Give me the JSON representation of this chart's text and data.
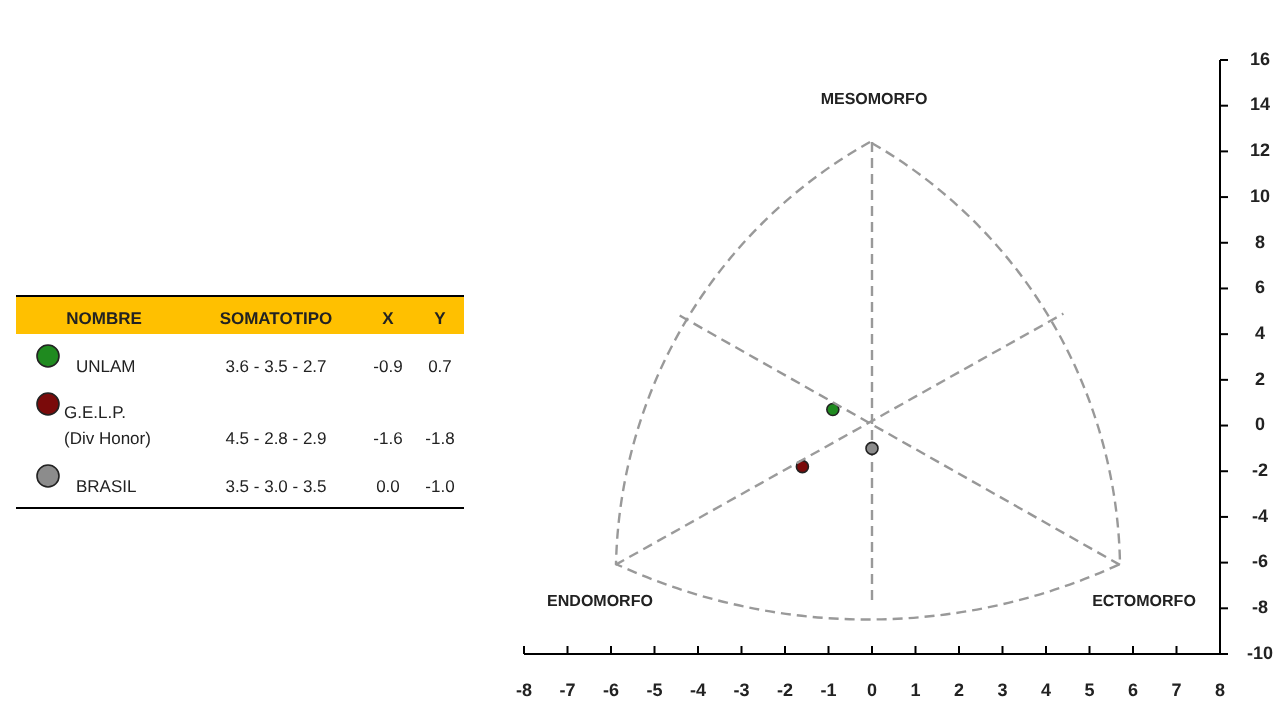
{
  "chart_data": {
    "type": "scatter",
    "xlim": [
      -8,
      8
    ],
    "xticks": [
      -8,
      -7,
      -6,
      -5,
      -4,
      -3,
      -2,
      -1,
      0,
      1,
      2,
      3,
      4,
      5,
      6,
      7,
      8
    ],
    "ylim": [
      -10,
      16
    ],
    "yticks": [
      -10,
      -8,
      -6,
      -4,
      -2,
      0,
      2,
      4,
      6,
      8,
      10,
      12,
      14,
      16
    ],
    "marker": "circle",
    "legend": "left",
    "series": [
      {
        "name": "UNLAM",
        "color": "#1f8a1f",
        "x": [
          -0.9
        ],
        "values": [
          0.7
        ]
      },
      {
        "name": "G.E.L.P. (Div Honor)",
        "color": "#7a0a0a",
        "x": [
          -1.6
        ],
        "values": [
          -1.8
        ]
      },
      {
        "name": "BRASIL",
        "color": "#8c8c8c",
        "x": [
          0.0
        ],
        "values": [
          -1.0
        ]
      },
      {
        "type": "line",
        "color": "#9b9b9b",
        "line_style": "dashed",
        "marker": "none",
        "x": [
          -5.9,
          4.4
        ],
        "values": [
          -6.1,
          4.9
        ]
      },
      {
        "type": "line",
        "color": "#979797",
        "line_style": "dashed",
        "marker": "none",
        "x": [
          5.7,
          -4.5
        ],
        "values": [
          -6.1,
          4.9
        ]
      }
    ],
    "ref_lines": [
      {
        "axis": "x",
        "value": 0,
        "color": "#999999",
        "line_style": "dashed"
      }
    ],
    "annotations": [
      "NOMBRE",
      "SOMATOTIPO",
      "X",
      "Y",
      "3.6 - 3.5 - 2.7",
      "-0.9",
      "0.7",
      "4.5 - 2.8 - 2.9",
      "-1.6",
      "-1.8",
      "3.5 - 3.0 - 3.5",
      "0.0",
      "-1.0",
      "MESOMORFO",
      "ENDOMORFO",
      "ECTOMORFO"
    ]
  }
}
